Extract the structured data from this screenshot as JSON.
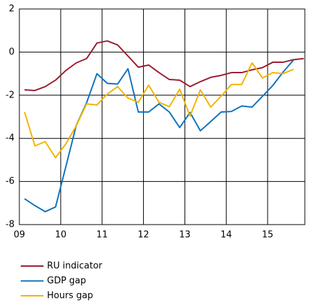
{
  "chart_data": {
    "type": "line",
    "x": [
      9.125,
      9.375,
      9.625,
      9.875,
      10.125,
      10.375,
      10.625,
      10.875,
      11.125,
      11.375,
      11.625,
      11.875,
      12.125,
      12.375,
      12.625,
      12.875,
      13.125,
      13.375,
      13.625,
      13.875,
      14.125,
      14.375,
      14.625,
      14.875,
      15.125,
      15.375,
      15.625,
      15.875
    ],
    "series": [
      {
        "name": "RU indicator",
        "color": "#9b1c2e",
        "values": [
          -1.75,
          -1.78,
          -1.6,
          -1.3,
          -0.85,
          -0.5,
          -0.3,
          0.42,
          0.52,
          0.33,
          -0.18,
          -0.7,
          -0.6,
          -0.95,
          -1.27,
          -1.3,
          -1.6,
          -1.37,
          -1.17,
          -1.08,
          -0.95,
          -0.95,
          -0.82,
          -0.72,
          -0.47,
          -0.47,
          -0.35,
          -0.3
        ]
      },
      {
        "name": "GDP gap",
        "color": "#0e72bd",
        "values": [
          -6.8,
          -7.12,
          -7.4,
          -7.18,
          -5.3,
          -3.4,
          -2.35,
          -1.0,
          -1.45,
          -1.48,
          -0.77,
          -2.78,
          -2.78,
          -2.4,
          -2.78,
          -3.5,
          -2.8,
          -3.65,
          -3.22,
          -2.78,
          -2.75,
          -2.5,
          -2.55,
          -2.05,
          -1.55,
          -0.92,
          -0.37,
          null
        ]
      },
      {
        "name": "Hours gap",
        "color": "#f0b400",
        "values": [
          -2.78,
          -4.35,
          -4.15,
          -4.9,
          -4.25,
          -3.42,
          -2.4,
          -2.45,
          -1.95,
          -1.6,
          -2.13,
          -2.33,
          -1.53,
          -2.33,
          -2.53,
          -1.72,
          -2.97,
          -1.75,
          -2.55,
          -2.05,
          -1.5,
          -1.5,
          -0.5,
          -1.2,
          -0.95,
          -1.0,
          -0.8,
          null
        ]
      }
    ],
    "xlim": [
      9,
      15.9
    ],
    "xticks": [
      {
        "value": 9,
        "label": "09"
      },
      10,
      11,
      12,
      13,
      14,
      15
    ],
    "ylim": [
      -8,
      2
    ],
    "yticks": [
      -8,
      -6,
      -4,
      -2,
      0,
      2
    ],
    "grid": true
  }
}
